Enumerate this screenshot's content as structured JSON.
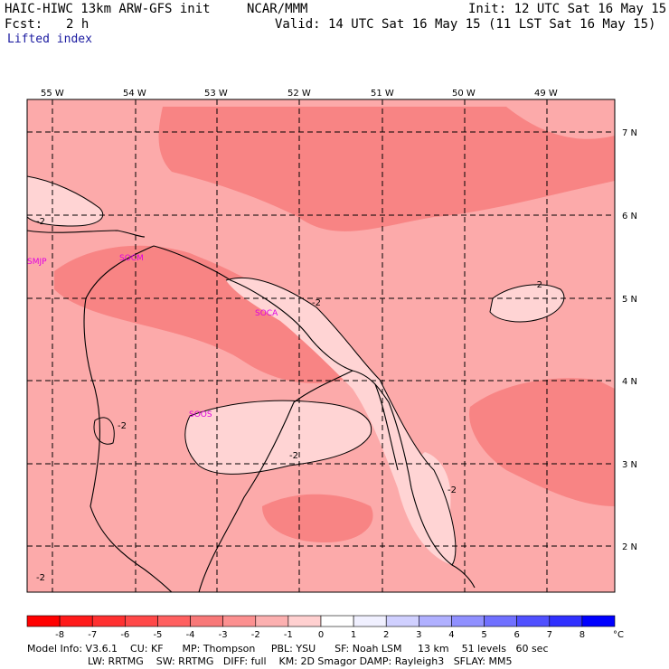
{
  "header": {
    "model": "HAIC-HIWC 13km ARW-GFS init",
    "center": "NCAR/MMM",
    "init": "Init: 12 UTC Sat 16 May 15",
    "fcst_label": "Fcst:",
    "fcst_value": "2 h",
    "valid": "Valid: 14 UTC Sat 16 May 15 (11 LST Sat 16 May 15)",
    "field": "Lifted index"
  },
  "map": {
    "lon_labels": [
      "55 W",
      "54 W",
      "53 W",
      "52 W",
      "51 W",
      "50 W",
      "49 W"
    ],
    "lat_labels": [
      "7 N",
      "6 N",
      "5 N",
      "4 N",
      "3 N",
      "2 N"
    ],
    "stations": [
      {
        "id": "SMJP"
      },
      {
        "id": "SOCM"
      },
      {
        "id": "SOCA"
      },
      {
        "id": "SOOS"
      }
    ],
    "contour_labels": [
      "-2",
      "-2",
      "-2",
      "-2",
      "-2",
      "-2",
      "-2",
      "-2"
    ],
    "colors": {
      "lvl_m3": "#f88080",
      "lvl_m2": "#fca8a8",
      "lvl_m1": "#ffd4d4",
      "lvl_m0": "#fff0f0",
      "coast": "#000000",
      "station": "#e000e0"
    }
  },
  "colorbar": {
    "labels": [
      "-8",
      "-7",
      "-6",
      "-5",
      "-4",
      "-3",
      "-2",
      "-1",
      "0",
      "1",
      "2",
      "3",
      "4",
      "5",
      "6",
      "7",
      "8"
    ],
    "unit": "°C",
    "colors": [
      "#ff1a1a",
      "#ff3030",
      "#ff4848",
      "#ff6060",
      "#f87878",
      "#fc9090",
      "#fcb0b0",
      "#ffd0d0",
      "#ffffff",
      "#f0f0ff",
      "#d0d0ff",
      "#b0b0ff",
      "#9090ff",
      "#7070ff",
      "#5050ff",
      "#3030ff",
      "#0000ff"
    ]
  },
  "footer": {
    "line1": "Model Info: V3.6.1    CU: KF      MP: Thompson     PBL: YSU      SF: Noah LSM     13 km    51 levels   60 sec",
    "line2": "LW: RRTMG    SW: RRTMG   DIFF: full    KM: 2D Smagor DAMP: Rayleigh3   SFLAY: MM5"
  }
}
